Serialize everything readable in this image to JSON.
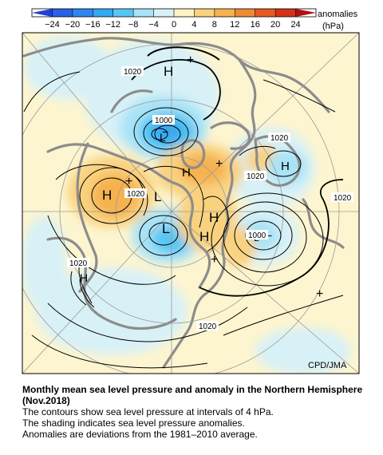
{
  "colorbar": {
    "ticks": [
      "−24",
      "−20",
      "−16",
      "−12",
      "−8",
      "−4",
      "0",
      "4",
      "8",
      "12",
      "16",
      "20",
      "24"
    ],
    "unit_label": "anomalies",
    "unit_sub": "(hPa)",
    "segments": [
      {
        "range": [
          -28,
          -24
        ],
        "color": "#1f3fd8"
      },
      {
        "range": [
          -24,
          -20
        ],
        "color": "#2a62e6"
      },
      {
        "range": [
          -20,
          -16
        ],
        "color": "#2f86ee"
      },
      {
        "range": [
          -16,
          -12
        ],
        "color": "#35a8f2"
      },
      {
        "range": [
          -12,
          -8
        ],
        "color": "#57c6f3"
      },
      {
        "range": [
          -8,
          -4
        ],
        "color": "#a9e3f7"
      },
      {
        "range": [
          -4,
          0
        ],
        "color": "#d8f1f7"
      },
      {
        "range": [
          0,
          4
        ],
        "color": "#fdf3c4"
      },
      {
        "range": [
          4,
          8
        ],
        "color": "#f9d27f"
      },
      {
        "range": [
          8,
          12
        ],
        "color": "#f6b24f"
      },
      {
        "range": [
          12,
          16
        ],
        "color": "#ef8a34"
      },
      {
        "range": [
          16,
          20
        ],
        "color": "#e65a24"
      },
      {
        "range": [
          20,
          24
        ],
        "color": "#d4301a"
      },
      {
        "range": [
          24,
          28
        ],
        "color": "#b01010"
      }
    ]
  },
  "map": {
    "pressure_centers": [
      {
        "id": "h-north-pacific-top",
        "symbol": "H"
      },
      {
        "id": "l-greenland",
        "symbol": "L"
      },
      {
        "id": "h-siberia",
        "symbol": "H"
      },
      {
        "id": "l-central-asia",
        "symbol": "L"
      },
      {
        "id": "l-arctic",
        "symbol": "L"
      },
      {
        "id": "h-small-1",
        "symbol": "H"
      },
      {
        "id": "h-canada",
        "symbol": "H"
      },
      {
        "id": "h-canada-2",
        "symbol": "H"
      },
      {
        "id": "h-right",
        "symbol": "H"
      },
      {
        "id": "l-aleutian",
        "symbol": "L"
      },
      {
        "id": "h-lower-left",
        "symbol": "H"
      }
    ],
    "contour_labels": [
      "1020",
      "1000",
      "1020",
      "1020",
      "1020",
      "1000",
      "1020",
      "1020",
      "1020"
    ],
    "credit": "CPD/JMA",
    "colors": {
      "land_outline": "#8c8c8c",
      "contour": "#000000",
      "grid": "#9a9a9a",
      "frame": "#000000"
    }
  },
  "caption": {
    "title": "Monthly mean sea level pressure and anomaly in the Northern Hemisphere (Nov.2018)",
    "line1": "The contours show sea level pressure at intervals of 4 hPa.",
    "line2": "The shading indicates sea level pressure anomalies.",
    "line3": "Anomalies are deviations from the 1981–2010 average."
  }
}
